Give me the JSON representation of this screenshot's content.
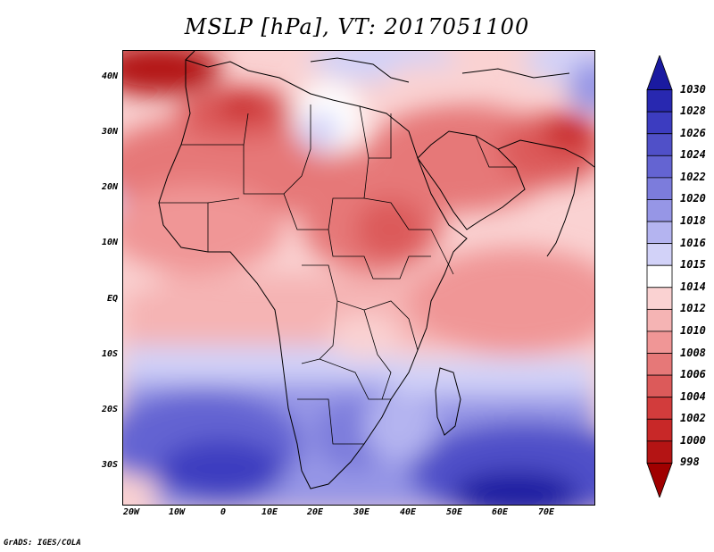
{
  "title": "MSLP [hPa], VT: 2017051100",
  "credit": "GrADS: IGES/COLA",
  "map": {
    "region": "Africa and Middle East",
    "lat_labels": [
      "40N",
      "30N",
      "20N",
      "10N",
      "EQ",
      "10S",
      "20S",
      "30S"
    ],
    "lon_labels": [
      "20W",
      "10W",
      "0",
      "10E",
      "20E",
      "30E",
      "40E",
      "50E",
      "60E",
      "70E"
    ],
    "pressure_features": [
      {
        "name": "Iberia / NW Africa low",
        "value": 998
      },
      {
        "name": "Sahara heat low",
        "value": 1004
      },
      {
        "name": "Sudan low",
        "value": 1004
      },
      {
        "name": "Arabian low",
        "value": 1006
      },
      {
        "name": "Pakistan low",
        "value": 1002
      },
      {
        "name": "Mediterranean ridge",
        "value": 1015
      },
      {
        "name": "South Atlantic high",
        "value": 1026
      },
      {
        "name": "Indian Ocean high",
        "value": 1030
      },
      {
        "name": "South Africa high",
        "value": 1022
      }
    ]
  },
  "colorbar": {
    "levels": [
      "1030",
      "1028",
      "1026",
      "1024",
      "1022",
      "1020",
      "1018",
      "1016",
      "1015",
      "1014",
      "1012",
      "1010",
      "1008",
      "1006",
      "1004",
      "1002",
      "1000",
      "998"
    ],
    "colors": [
      "#1a1aa0",
      "#2828b0",
      "#3c3cc0",
      "#5050c8",
      "#6464d2",
      "#7c7cdc",
      "#9696e6",
      "#b4b4f0",
      "#d2d2f8",
      "#ffffff",
      "#fad2d2",
      "#f5b4b4",
      "#f09696",
      "#e67878",
      "#dc5a5a",
      "#d23c3c",
      "#c82828",
      "#b41414",
      "#a00000"
    ]
  }
}
